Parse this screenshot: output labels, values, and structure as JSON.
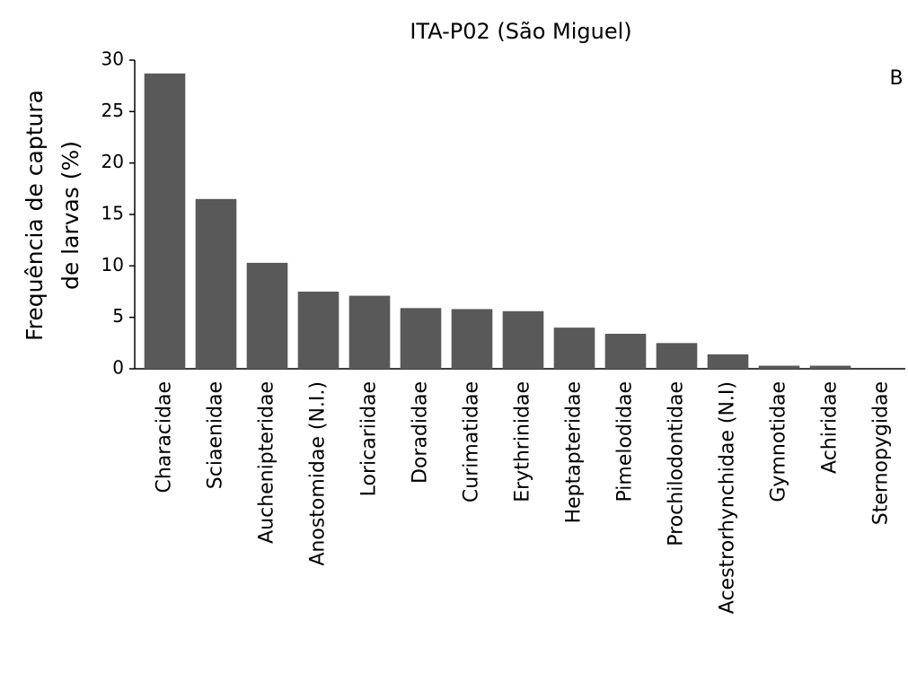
{
  "chart_data": {
    "type": "bar",
    "title": "ITA-P02 (São Miguel)",
    "ylabel": [
      "Frequência de captura",
      "de larvas (%)"
    ],
    "panel_label": "B",
    "categories": [
      "Characidae",
      "Sciaenidae",
      "Auchenipteridae",
      "Anostomidae (N.I.)",
      "Loricariidae",
      "Doradidae",
      "Curimatidae",
      "Erythrinidae",
      "Heptapteridae",
      "Pimelodidae",
      "Prochilodontidae",
      "Acestrorhynchidae (N.I)",
      "Gymnotidae",
      "Achiridae",
      "Sternopygidae"
    ],
    "values": [
      28.7,
      16.5,
      10.3,
      7.5,
      7.1,
      5.9,
      5.8,
      5.6,
      4.0,
      3.4,
      2.5,
      1.4,
      0.3,
      0.3,
      0
    ],
    "color": "#595959",
    "ylim": [
      0,
      30
    ],
    "yticks": [
      0,
      5,
      10,
      15,
      20,
      25,
      30
    ],
    "grid": false
  }
}
